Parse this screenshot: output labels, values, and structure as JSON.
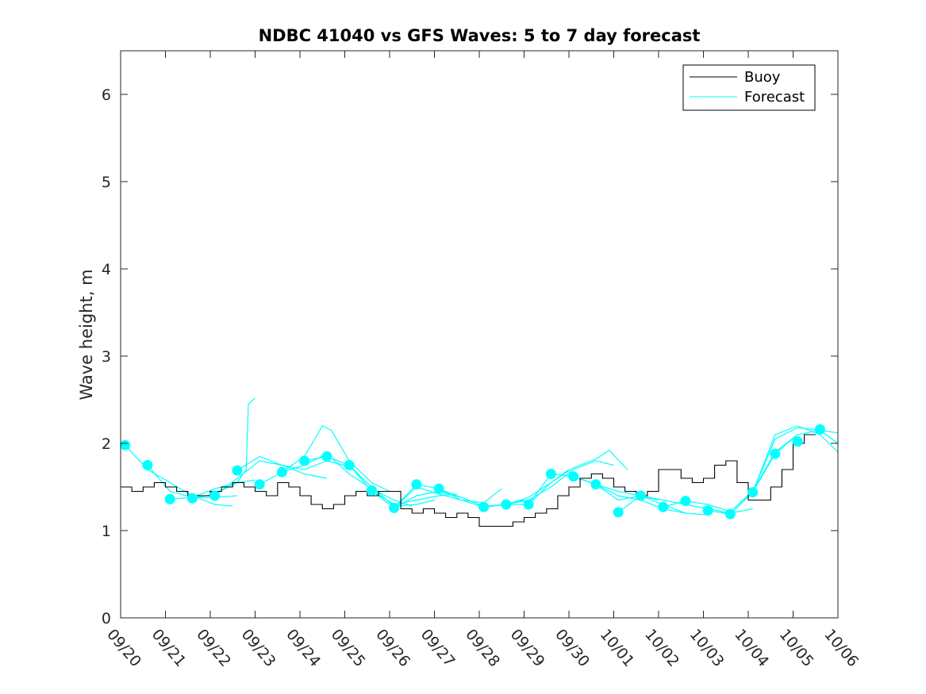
{
  "chart_data": {
    "type": "line",
    "title": "NDBC 41040 vs GFS Waves: 5 to 7 day forecast",
    "xlabel": "",
    "ylabel": "Wave height, m",
    "xlim": [
      0,
      16
    ],
    "ylim": [
      0,
      6.5
    ],
    "grid": false,
    "legend_position": "top-right",
    "x_tick_labels": [
      "09/20",
      "09/21",
      "09/22",
      "09/23",
      "09/24",
      "09/25",
      "09/26",
      "09/27",
      "09/28",
      "09/29",
      "09/30",
      "10/01",
      "10/02",
      "10/03",
      "10/04",
      "10/05",
      "10/06"
    ],
    "y_ticks": [
      0,
      1,
      2,
      3,
      4,
      5,
      6
    ],
    "colors": {
      "buoy": "#000000",
      "forecast": "#00ffff",
      "axis": "#262626"
    },
    "series": [
      {
        "name": "Buoy",
        "color": "#000000",
        "x": [
          0,
          0.25,
          0.5,
          0.75,
          1,
          1.25,
          1.5,
          1.75,
          2,
          2.25,
          2.5,
          2.75,
          3,
          3.25,
          3.5,
          3.75,
          4,
          4.25,
          4.5,
          4.75,
          5,
          5.25,
          5.5,
          5.75,
          6,
          6.25,
          6.5,
          6.75,
          7,
          7.25,
          7.5,
          7.75,
          8,
          8.25,
          8.5,
          8.75,
          9,
          9.25,
          9.5,
          9.75,
          10,
          10.25,
          10.5,
          10.75,
          11,
          11.25,
          11.5,
          11.75,
          12,
          12.25,
          12.5,
          12.75,
          13,
          13.25,
          13.5,
          13.75,
          14,
          14.25,
          14.5,
          14.75,
          15,
          15.25
        ],
        "values": [
          1.5,
          1.45,
          1.5,
          1.55,
          1.5,
          1.45,
          1.4,
          1.4,
          1.45,
          1.5,
          1.55,
          1.5,
          1.45,
          1.4,
          1.55,
          1.5,
          1.4,
          1.3,
          1.25,
          1.3,
          1.4,
          1.45,
          1.4,
          1.45,
          1.45,
          1.25,
          1.2,
          1.25,
          1.2,
          1.15,
          1.2,
          1.15,
          1.05,
          1.05,
          1.05,
          1.1,
          1.15,
          1.2,
          1.25,
          1.4,
          1.5,
          1.6,
          1.65,
          1.6,
          1.5,
          1.45,
          1.4,
          1.45,
          1.7,
          1.7,
          1.6,
          1.55,
          1.6,
          1.75,
          1.8,
          1.55,
          1.35,
          1.35,
          1.5,
          1.7,
          2.0,
          2.1
        ]
      },
      {
        "name": "Forecast",
        "color": "#00ffff",
        "markers": {
          "x": [
            0.1,
            0.6,
            1.1,
            1.6,
            2.1,
            2.6,
            3.1,
            3.6,
            4.1,
            4.6,
            5.1,
            5.6,
            6.1,
            6.6,
            7.1,
            8.1,
            8.6,
            9.1,
            9.6,
            10.1,
            10.6,
            11.1,
            11.6,
            12.1,
            12.6,
            13.1,
            13.6,
            14.1,
            14.6,
            15.1,
            15.6
          ],
          "values": [
            1.98,
            1.75,
            1.36,
            1.37,
            1.4,
            1.69,
            1.53,
            1.67,
            1.8,
            1.85,
            1.75,
            1.46,
            1.26,
            1.53,
            1.48,
            1.27,
            1.3,
            1.3,
            1.65,
            1.62,
            1.53,
            1.21,
            1.4,
            1.27,
            1.34,
            1.23,
            1.19,
            1.44,
            1.88,
            2.02,
            2.16
          ]
        },
        "traces": [
          {
            "x": [
              0.1,
              0.6,
              1.1,
              1.6,
              2.1,
              2.5
            ],
            "values": [
              1.98,
              1.7,
              1.55,
              1.4,
              1.3,
              1.28
            ]
          },
          {
            "x": [
              0.6,
              1.1,
              1.6,
              2.1,
              2.6
            ],
            "values": [
              1.75,
              1.45,
              1.38,
              1.38,
              1.4
            ]
          },
          {
            "x": [
              1.1,
              1.6,
              2.1,
              2.6,
              3.0
            ],
            "values": [
              1.36,
              1.38,
              1.48,
              1.55,
              1.58
            ]
          },
          {
            "x": [
              1.6,
              2.1,
              2.6,
              2.8,
              2.85,
              3.0
            ],
            "values": [
              1.37,
              1.42,
              1.55,
              1.7,
              2.45,
              2.52
            ]
          },
          {
            "x": [
              2.1,
              2.6,
              3.1,
              3.6,
              4.1,
              4.6
            ],
            "values": [
              1.4,
              1.6,
              1.8,
              1.75,
              1.65,
              1.6
            ]
          },
          {
            "x": [
              2.6,
              3.1,
              3.6,
              4.1,
              4.6,
              5.0
            ],
            "values": [
              1.69,
              1.85,
              1.75,
              1.7,
              1.8,
              1.75
            ]
          },
          {
            "x": [
              3.1,
              3.6,
              4.1,
              4.5,
              4.7,
              5.1,
              5.6,
              6.0
            ],
            "values": [
              1.53,
              1.67,
              1.85,
              2.2,
              2.15,
              1.8,
              1.55,
              1.45
            ]
          },
          {
            "x": [
              3.6,
              4.1,
              4.6,
              5.1,
              5.6,
              6.1,
              6.5
            ],
            "values": [
              1.67,
              1.75,
              1.88,
              1.65,
              1.48,
              1.35,
              1.28
            ]
          },
          {
            "x": [
              4.1,
              4.6,
              5.1,
              5.6,
              6.1,
              6.6,
              7.0
            ],
            "values": [
              1.8,
              1.85,
              1.75,
              1.5,
              1.28,
              1.3,
              1.35
            ]
          },
          {
            "x": [
              4.6,
              5.1,
              5.6,
              6.1,
              6.6,
              7.1,
              7.5
            ],
            "values": [
              1.85,
              1.75,
              1.46,
              1.3,
              1.35,
              1.4,
              1.42
            ]
          },
          {
            "x": [
              5.1,
              5.6,
              6.1,
              6.6,
              7.1,
              7.6,
              8.0
            ],
            "values": [
              1.75,
              1.46,
              1.26,
              1.4,
              1.45,
              1.38,
              1.3
            ]
          },
          {
            "x": [
              5.6,
              6.1,
              6.6,
              7.1,
              7.6,
              8.1,
              8.5
            ],
            "values": [
              1.46,
              1.26,
              1.5,
              1.42,
              1.35,
              1.32,
              1.48
            ]
          },
          {
            "x": [
              6.1,
              6.6,
              7.1,
              7.6,
              8.1,
              8.6,
              9.0
            ],
            "values": [
              1.26,
              1.53,
              1.48,
              1.38,
              1.28,
              1.3,
              1.35
            ]
          },
          {
            "x": [
              7.1,
              7.6,
              8.1,
              8.6,
              9.1,
              9.6,
              10.0
            ],
            "values": [
              1.48,
              1.35,
              1.27,
              1.3,
              1.38,
              1.55,
              1.7
            ]
          },
          {
            "x": [
              8.1,
              8.6,
              9.1,
              9.6,
              10.1,
              10.6,
              11.0
            ],
            "values": [
              1.27,
              1.3,
              1.35,
              1.5,
              1.7,
              1.8,
              1.75
            ]
          },
          {
            "x": [
              8.6,
              9.1,
              9.6,
              10.1,
              10.6,
              10.9,
              11.3
            ],
            "values": [
              1.3,
              1.3,
              1.55,
              1.72,
              1.82,
              1.92,
              1.7
            ]
          },
          {
            "x": [
              9.1,
              9.6,
              10.1,
              10.6,
              11.1,
              11.6,
              12.0
            ],
            "values": [
              1.3,
              1.65,
              1.62,
              1.53,
              1.45,
              1.4,
              1.35
            ]
          },
          {
            "x": [
              9.6,
              10.1,
              10.6,
              11.1,
              11.6,
              12.1,
              12.6
            ],
            "values": [
              1.65,
              1.62,
              1.53,
              1.4,
              1.35,
              1.25,
              1.2
            ]
          },
          {
            "x": [
              10.1,
              10.6,
              11.1,
              11.6,
              12.1,
              12.6,
              13.1
            ],
            "values": [
              1.62,
              1.53,
              1.35,
              1.4,
              1.3,
              1.2,
              1.18
            ]
          },
          {
            "x": [
              11.1,
              11.6,
              12.1,
              12.6,
              13.1,
              13.6,
              14.1
            ],
            "values": [
              1.21,
              1.4,
              1.35,
              1.3,
              1.25,
              1.2,
              1.25
            ]
          },
          {
            "x": [
              12.1,
              12.6,
              13.1,
              13.6,
              14.1,
              14.6,
              15.1
            ],
            "values": [
              1.27,
              1.34,
              1.3,
              1.22,
              1.45,
              1.9,
              2.1
            ]
          },
          {
            "x": [
              13.1,
              13.6,
              14.1,
              14.6,
              15.1,
              15.6,
              16.0
            ],
            "values": [
              1.23,
              1.19,
              1.44,
              1.88,
              2.1,
              2.15,
              2.0
            ]
          },
          {
            "x": [
              13.6,
              14.1,
              14.6,
              15.1,
              15.6,
              16.0
            ],
            "values": [
              1.19,
              1.44,
              2.1,
              2.2,
              2.1,
              1.9
            ]
          },
          {
            "x": [
              14.1,
              14.6,
              15.1,
              15.6,
              16.0
            ],
            "values": [
              1.44,
              2.05,
              2.18,
              2.15,
              2.12
            ]
          }
        ]
      }
    ]
  }
}
